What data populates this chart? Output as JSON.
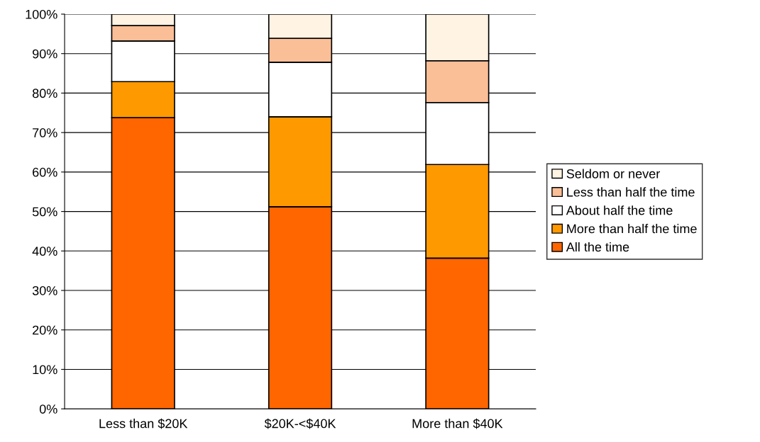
{
  "chart_data": {
    "type": "bar",
    "stacked": true,
    "categories": [
      "Less than $20K",
      "$20K-<$40K",
      "More than $40K"
    ],
    "series": [
      {
        "name": "All the time",
        "color": "#ff6600",
        "values": [
          73.8,
          51.2,
          38.2
        ]
      },
      {
        "name": "More than half the time",
        "color": "#ff9900",
        "values": [
          9.1,
          22.8,
          23.7
        ]
      },
      {
        "name": "About half the time",
        "color": "#ffffff",
        "values": [
          10.3,
          13.8,
          15.7
        ]
      },
      {
        "name": "Less than half the time",
        "color": "#fbbf98",
        "values": [
          3.9,
          6.1,
          10.6
        ]
      },
      {
        "name": "Seldom or never",
        "color": "#fff3e3",
        "values": [
          2.9,
          6.1,
          11.8
        ]
      }
    ],
    "ylim": [
      0,
      100
    ],
    "yticks": [
      {
        "value": 0,
        "label": "0%"
      },
      {
        "value": 10,
        "label": "10%"
      },
      {
        "value": 20,
        "label": "20%"
      },
      {
        "value": 30,
        "label": "30%"
      },
      {
        "value": 40,
        "label": "40%"
      },
      {
        "value": 50,
        "label": "50%"
      },
      {
        "value": 60,
        "label": "60%"
      },
      {
        "value": 70,
        "label": "70%"
      },
      {
        "value": 80,
        "label": "80%"
      },
      {
        "value": 90,
        "label": "90%"
      },
      {
        "value": 100,
        "label": "100%"
      }
    ],
    "grid": "y",
    "legend": "right"
  }
}
